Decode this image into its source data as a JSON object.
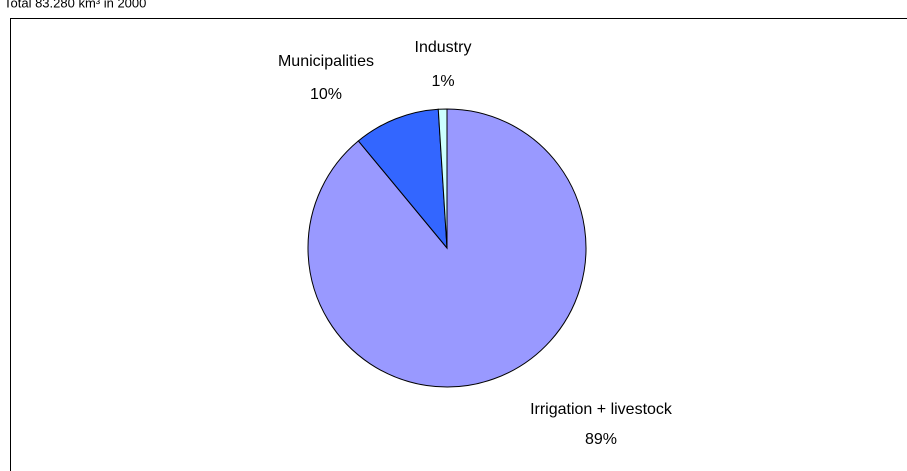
{
  "chart_data": {
    "type": "pie",
    "title": "Total 83.280 km³ in 2000",
    "categories": [
      "Irrigation + livestock",
      "Municipalities",
      "Industry"
    ],
    "values": [
      89,
      10,
      1
    ],
    "value_labels": [
      "89%",
      "10%",
      "1%"
    ],
    "colors": [
      "#9999ff",
      "#3366ff",
      "#ccffff"
    ]
  }
}
